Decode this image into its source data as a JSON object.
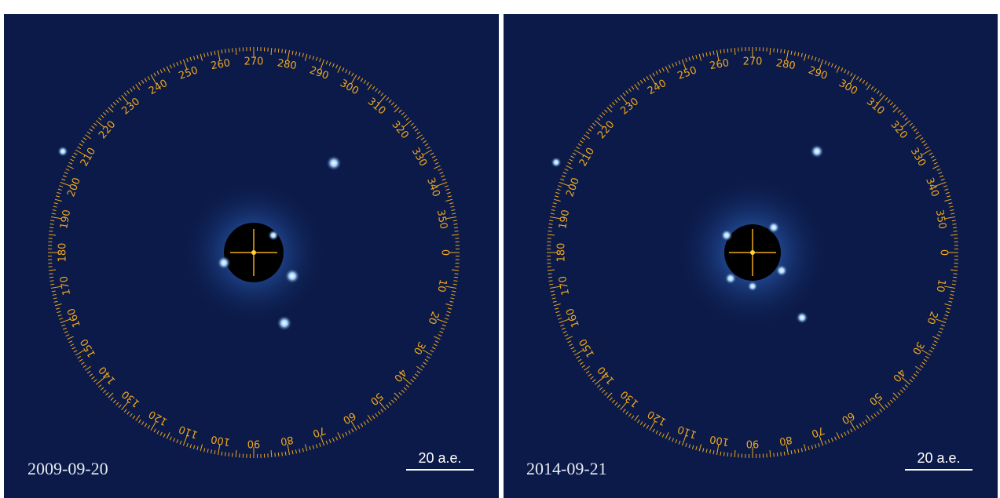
{
  "panels": [
    {
      "date": "2009-09-20",
      "scale_label": "20 a.e."
    },
    {
      "date": "2014-09-21",
      "scale_label": "20 a.e."
    }
  ],
  "protractor": {
    "labels": [
      0,
      10,
      20,
      30,
      40,
      50,
      60,
      70,
      80,
      90,
      100,
      110,
      120,
      130,
      140,
      150,
      160,
      170,
      180,
      190,
      200,
      210,
      220,
      230,
      240,
      250,
      260,
      270,
      280,
      290,
      300,
      310,
      320,
      330,
      340,
      350
    ]
  }
}
